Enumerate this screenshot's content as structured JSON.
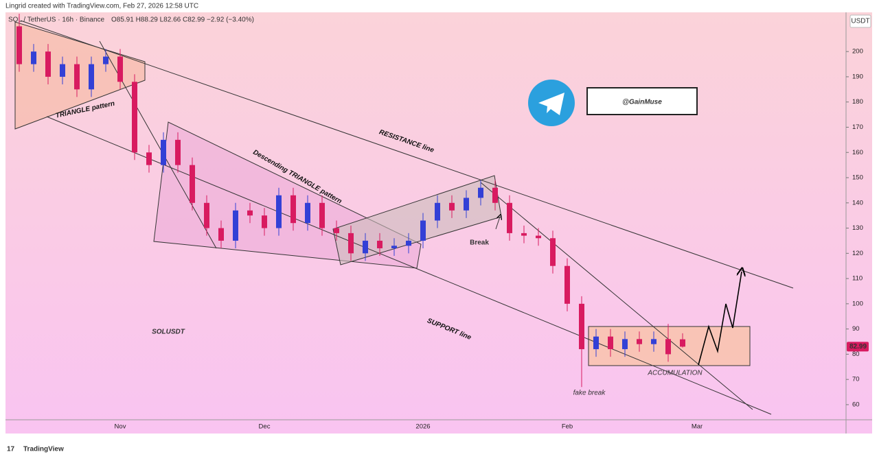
{
  "chart_data": {
    "type": "candlestick",
    "source_note": "Lingrid created with TradingView.com, Feb 27, 2026 12:58 UTC",
    "symbol": "SOL / TetherUS · 16h · Binance",
    "ohlc_legend": "O85.91 H88.29 L82.66 C82.99 −2.92 (−3.40%)",
    "axis_unit": "USDT",
    "watermark": "SOLUSDT",
    "handle": "@GainMuse",
    "brand": "TradingView",
    "annotations": [
      "TRIANGLE pattern",
      "Descending TRIANGLE pattern",
      "RESISTANCE line",
      "SUPPORT line",
      "Break",
      "ACCUMULATION",
      "fake break"
    ],
    "up_color": "#3340d6",
    "down_color": "#d81b60",
    "categories": [
      null,
      null,
      null,
      null,
      null,
      null,
      null,
      "Nov",
      null,
      null,
      null,
      null,
      null,
      null,
      null,
      null,
      null,
      "Dec",
      null,
      null,
      null,
      null,
      null,
      null,
      null,
      null,
      null,
      null,
      "2026",
      null,
      null,
      null,
      null,
      null,
      null,
      null,
      null,
      null,
      "Feb",
      null,
      null,
      null,
      null,
      null,
      null,
      null,
      null,
      "Mar",
      null,
      null,
      null,
      null,
      null,
      null,
      null,
      null,
      null,
      null
    ],
    "open": [
      210,
      195,
      200,
      190,
      195,
      185,
      195,
      198,
      188,
      160,
      155,
      165,
      155,
      140,
      130,
      125,
      137,
      135,
      130,
      143,
      132,
      140,
      130,
      128,
      120,
      125,
      122,
      123,
      125,
      133,
      140,
      137,
      142,
      146,
      140,
      128,
      127,
      126,
      115,
      100,
      82,
      87,
      82,
      86,
      84,
      86,
      85.91,
      null,
      null,
      null,
      null,
      null,
      null,
      null,
      null,
      null,
      null,
      null
    ],
    "high": [
      215,
      203,
      203,
      198,
      198,
      198,
      201,
      201,
      191,
      163,
      168,
      168,
      158,
      143,
      133,
      140,
      140,
      138,
      146,
      146,
      143,
      143,
      133,
      131,
      128,
      128,
      126,
      128,
      136,
      143,
      143,
      145,
      149,
      149,
      143,
      131,
      130,
      129,
      118,
      103,
      90,
      90,
      89,
      89,
      89,
      92,
      88.29,
      null,
      null,
      null,
      null,
      null,
      null,
      null,
      null,
      null,
      null,
      null
    ],
    "low": [
      192,
      192,
      187,
      187,
      182,
      182,
      192,
      185,
      157,
      152,
      152,
      152,
      137,
      127,
      122,
      122,
      132,
      127,
      127,
      129,
      129,
      127,
      125,
      117,
      117,
      119,
      119,
      120,
      122,
      130,
      134,
      134,
      139,
      137,
      125,
      124,
      123,
      112,
      97,
      67,
      79,
      79,
      79,
      81,
      81,
      77,
      82.66,
      null,
      null,
      null,
      null,
      null,
      null,
      null,
      null,
      null,
      null,
      null
    ],
    "close": [
      195,
      200,
      190,
      195,
      185,
      195,
      198,
      188,
      160,
      155,
      165,
      155,
      140,
      130,
      125,
      137,
      135,
      130,
      143,
      132,
      140,
      130,
      128,
      120,
      125,
      122,
      123,
      125,
      133,
      140,
      137,
      142,
      146,
      140,
      128,
      127,
      126,
      115,
      100,
      82,
      87,
      82,
      86,
      84,
      86,
      80,
      82.99,
      null,
      null,
      null,
      null,
      null,
      null,
      null,
      null,
      null,
      null,
      null
    ],
    "ylim": [
      54,
      215
    ],
    "yticks": [
      60,
      70,
      80,
      90,
      100,
      110,
      120,
      130,
      140,
      150,
      160,
      170,
      180,
      190,
      200
    ],
    "grid": false
  }
}
